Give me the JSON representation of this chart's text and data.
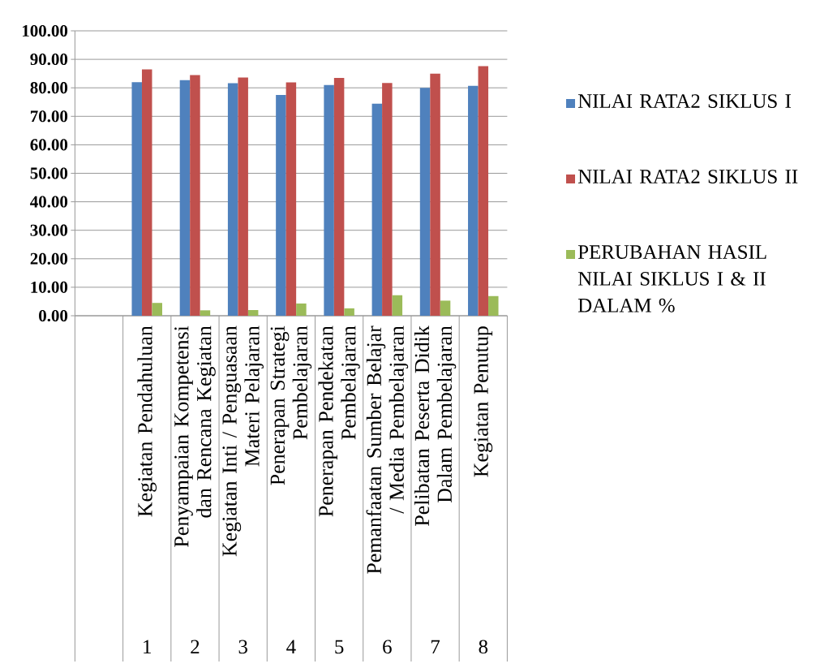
{
  "chart_data": {
    "type": "bar",
    "categories": [
      null,
      "Kegiatan Pendahuluan",
      "Penyampaian Kompetensi dan Rencana Kegiatan",
      "Kegiatan Inti / Penguasaan Materi Pelajaran",
      "Penerapan Strategi Pembelajaran",
      "Penerapan Pendekatan Pembelajaran",
      "Pemanfaatan Sumber Belajar / Media Pembelajaran",
      "Pelibatan Peserta Didik Dalam Pembelajaran",
      "Kegiatan Penutup"
    ],
    "series": [
      {
        "name": "NILAI RATA2  SIKLUS I",
        "color": "#4f81bd",
        "values": [
          null,
          82.0,
          82.7,
          81.6,
          77.5,
          81.0,
          74.4,
          80.0,
          80.7
        ]
      },
      {
        "name": "NILAI RATA2 SIKLUS II",
        "color": "#c0504d",
        "values": [
          null,
          86.5,
          84.5,
          83.6,
          81.9,
          83.5,
          81.7,
          85.0,
          87.6
        ]
      },
      {
        "name": "PERUBAHAN HASIL NILAI  SIKLUS I & II DALAM %",
        "color": "#9bbb59",
        "values": [
          null,
          4.5,
          1.9,
          2.0,
          4.3,
          2.6,
          7.2,
          5.3,
          6.9
        ]
      }
    ],
    "annotations": [
      "1",
      "2",
      "3",
      "4",
      "5",
      "6",
      "7",
      "8"
    ],
    "ylim": [
      0,
      100
    ],
    "yticks": [
      {
        "value": 0,
        "label": "0.00"
      },
      {
        "value": 10,
        "label": "10.00"
      },
      {
        "value": 20,
        "label": "20.00"
      },
      {
        "value": 30,
        "label": "30.00"
      },
      {
        "value": 40,
        "label": "40.00"
      },
      {
        "value": 50,
        "label": "50.00"
      },
      {
        "value": 60,
        "label": "60.00"
      },
      {
        "value": 70,
        "label": "70.00"
      },
      {
        "value": 80,
        "label": "80.00"
      },
      {
        "value": 90,
        "label": "90.00"
      },
      {
        "value": 100,
        "label": "100.00"
      }
    ],
    "grid": "y",
    "legend": "right"
  }
}
